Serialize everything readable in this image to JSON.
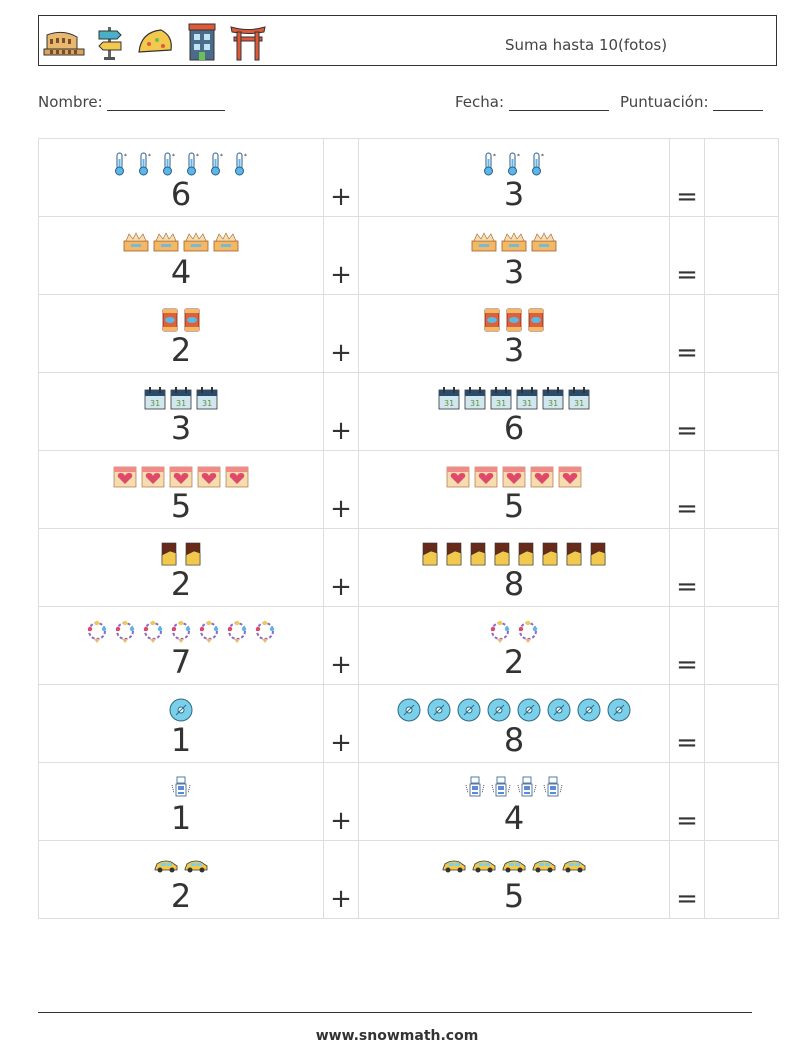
{
  "header": {
    "title": "Suma hasta 10(fotos)",
    "icons": [
      "colosseum-icon",
      "signpost-icon",
      "taco-icon",
      "building-icon",
      "torii-gate-icon"
    ]
  },
  "meta": {
    "name_label": "Nombre:",
    "date_label": "Fecha:",
    "score_label": "Puntuación:"
  },
  "operators": {
    "plus": "+",
    "equals": "="
  },
  "problems": [
    {
      "a": "6",
      "b": "3",
      "icon": "thermometer-icon"
    },
    {
      "a": "4",
      "b": "3",
      "icon": "crown-box-icon"
    },
    {
      "a": "2",
      "b": "3",
      "icon": "fish-can-icon"
    },
    {
      "a": "3",
      "b": "6",
      "icon": "calendar-icon"
    },
    {
      "a": "5",
      "b": "5",
      "icon": "heart-calendar-icon"
    },
    {
      "a": "2",
      "b": "8",
      "icon": "chocolate-bar-icon"
    },
    {
      "a": "7",
      "b": "2",
      "icon": "flower-wreath-icon"
    },
    {
      "a": "1",
      "b": "8",
      "icon": "disc-icon"
    },
    {
      "a": "1",
      "b": "4",
      "icon": "robot-icon"
    },
    {
      "a": "2",
      "b": "5",
      "icon": "car-icon"
    }
  ],
  "footer": {
    "url": "www.snowmath.com"
  }
}
